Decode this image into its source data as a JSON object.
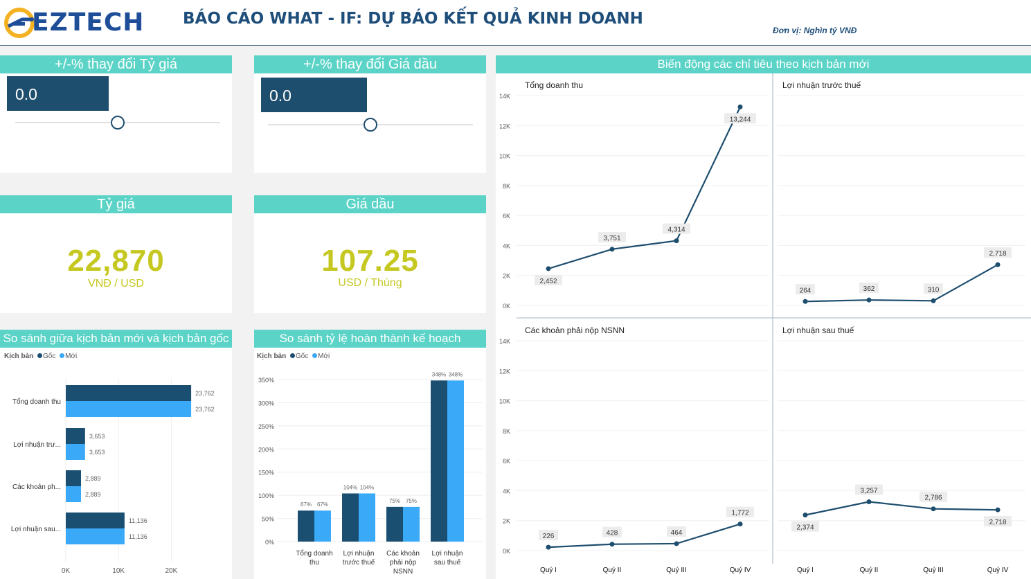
{
  "header": {
    "logo_text": "EZTECH",
    "title": "BÁO CÁO WHAT - IF: DỰ BÁO KẾT QUẢ KINH DOANH",
    "unit": "Đơn vị: Nghìn tỷ VNĐ"
  },
  "slider_fx": {
    "title": "+/-% thay đổi Tỷ giá",
    "value": "0.0",
    "position": 0.5
  },
  "slider_oil": {
    "title": "+/-% thay đổi Giá dầu",
    "value": "0.0",
    "position": 0.5
  },
  "kpi_fx": {
    "title": "Tỷ giá",
    "value": "22,870",
    "unit": "VNĐ / USD"
  },
  "kpi_oil": {
    "title": "Giá dầu",
    "value": "107.25",
    "unit": "USD / Thùng"
  },
  "compare_panel": {
    "title": "So sánh giữa kịch bản mới và kịch bản gốc"
  },
  "completion_panel": {
    "title": "So sánh tỷ lệ hoàn thành kế hoạch"
  },
  "trend_panel": {
    "title": "Biến động các chỉ tiêu theo kịch bản mới"
  },
  "legend": {
    "label": "Kịch bản",
    "items": [
      "Gốc",
      "Mới"
    ]
  },
  "colors": {
    "goc": "#1b4f72",
    "moi": "#3aa9f7",
    "line": "#1e4e6e",
    "accent": "#5bd3c7",
    "kpi": "#c5c820"
  },
  "chart_data": [
    {
      "type": "bar",
      "orientation": "horizontal",
      "categories": [
        "Tổng doanh thu",
        "Lợi nhuận trư...",
        "Các khoản ph...",
        "Lợi nhuận sau..."
      ],
      "series": [
        {
          "name": "Gốc",
          "values": [
            23762,
            3653,
            2889,
            11136
          ]
        },
        {
          "name": "Mới",
          "values": [
            23762,
            3653,
            2889,
            11136
          ]
        }
      ],
      "data_labels": [
        [
          "23,762",
          "3,653",
          "2,889",
          "11,136"
        ],
        [
          "23,762",
          "3,653",
          "2,889",
          "11,136"
        ]
      ],
      "xlim": [
        0,
        29000
      ],
      "xticks": [
        0,
        10000,
        20000
      ],
      "xtick_labels": [
        "0K",
        "10K",
        "20K"
      ]
    },
    {
      "type": "bar",
      "categories": [
        [
          "Tổng doanh",
          "thu"
        ],
        [
          "Lợi nhuận",
          "trước thuế"
        ],
        [
          "Các khoản",
          "phải nộp",
          "NSNN"
        ],
        [
          "Lợi nhuận",
          "sau thuế"
        ]
      ],
      "series": [
        {
          "name": "Gốc",
          "values": [
            67,
            104,
            75,
            348
          ]
        },
        {
          "name": "Mới",
          "values": [
            67,
            104,
            75,
            348
          ]
        }
      ],
      "data_labels": [
        [
          "67%",
          "104%",
          "75%",
          "348%"
        ],
        [
          "67%",
          "104%",
          "75%",
          "348%"
        ]
      ],
      "ylim": [
        0,
        350
      ],
      "yticks": [
        0,
        50,
        100,
        150,
        200,
        250,
        300,
        350
      ],
      "ytick_labels": [
        "0%",
        "50%",
        "100%",
        "150%",
        "200%",
        "250%",
        "300%",
        "350%"
      ]
    },
    {
      "type": "line",
      "title": "Tổng doanh thu",
      "categories": [
        "Quý I",
        "Quý II",
        "Quý III",
        "Quý IV"
      ],
      "values": [
        2452,
        3751,
        4314,
        13244
      ],
      "labels": [
        "2,452",
        "3,751",
        "4,314",
        "13,244"
      ],
      "ylim": [
        0,
        14000
      ],
      "yticks": [
        0,
        2000,
        4000,
        6000,
        8000,
        10000,
        12000,
        14000
      ],
      "ytick_labels": [
        "0K",
        "2K",
        "4K",
        "6K",
        "8K",
        "10K",
        "12K",
        "14K"
      ]
    },
    {
      "type": "line",
      "title": "Lợi nhuận trước thuế",
      "categories": [
        "Quý I",
        "Quý II",
        "Quý III",
        "Quý IV"
      ],
      "values": [
        264,
        362,
        310,
        2718
      ],
      "labels": [
        "264",
        "362",
        "310",
        "2,718"
      ],
      "ylim": [
        0,
        14000
      ]
    },
    {
      "type": "line",
      "title": "Các khoản phải nộp NSNN",
      "categories": [
        "Quý I",
        "Quý II",
        "Quý III",
        "Quý IV"
      ],
      "values": [
        226,
        428,
        464,
        1772
      ],
      "labels": [
        "226",
        "428",
        "464",
        "1,772"
      ],
      "ylim": [
        0,
        14000
      ],
      "yticks": [
        0,
        2000,
        4000,
        6000,
        8000,
        10000,
        12000,
        14000
      ],
      "ytick_labels": [
        "0K",
        "2K",
        "4K",
        "6K",
        "8K",
        "10K",
        "12K",
        "14K"
      ]
    },
    {
      "type": "line",
      "title": "Lợi nhuận sau thuế",
      "categories": [
        "Quý I",
        "Quý II",
        "Quý III",
        "Quý IV"
      ],
      "values": [
        2374,
        3257,
        2786,
        2718
      ],
      "labels": [
        "2,374",
        "3,257",
        "2,786",
        "2,718"
      ],
      "ylim": [
        0,
        14000
      ]
    }
  ]
}
